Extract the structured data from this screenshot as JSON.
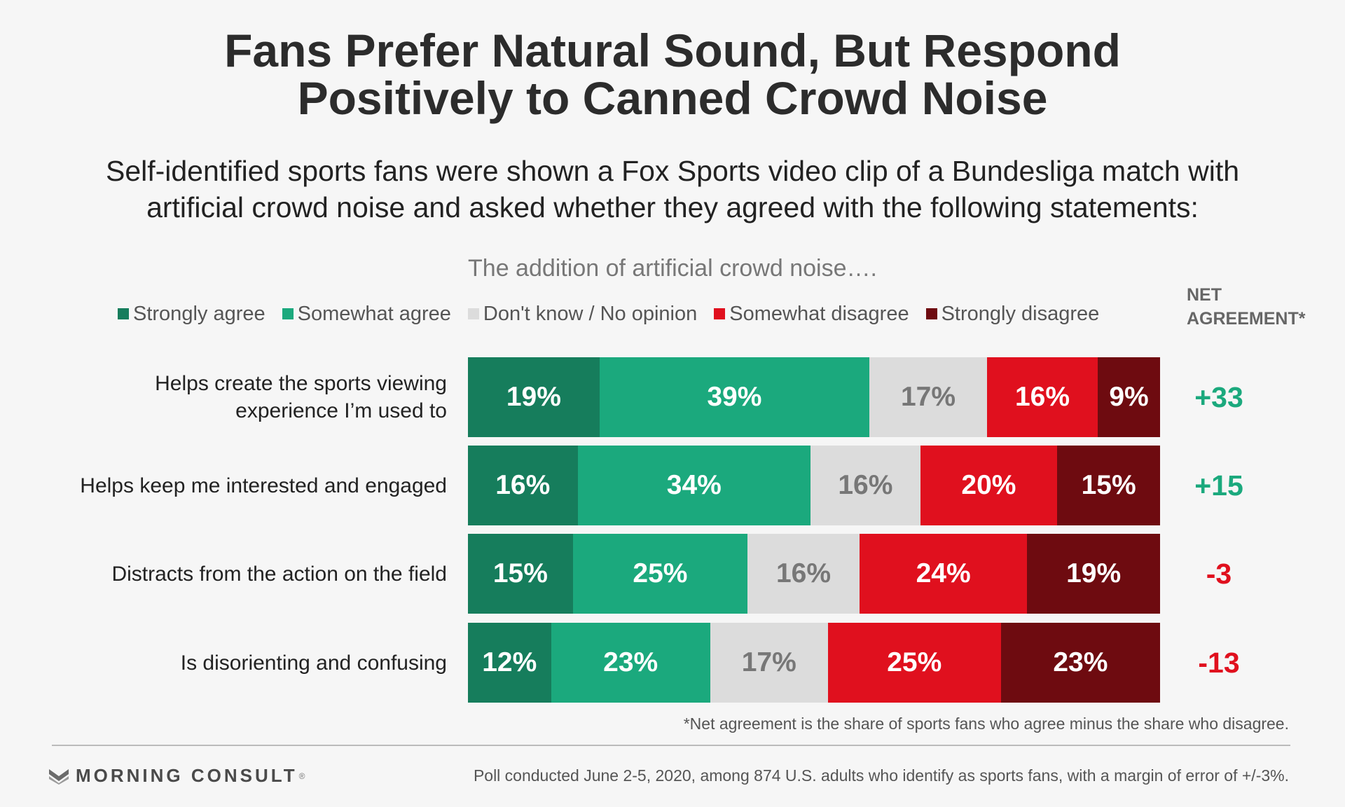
{
  "header": {
    "title_lines": [
      "Fans Prefer Natural Sound, But Respond",
      "Positively to Canned Crowd Noise"
    ],
    "subtitle_lines": [
      "Self-identified sports fans were shown a Fox Sports video clip of a Bundesliga match with",
      "artificial crowd noise and asked whether they agreed with the following statements:"
    ]
  },
  "colors": {
    "strongly_agree": "#167d5c",
    "somewhat_agree": "#1ba97d",
    "dont_know": "#dcdcdc",
    "somewhat_disagree": "#e0101e",
    "strongly_disagree": "#6e0b10",
    "positive_net": "#1ba97d",
    "negative_net": "#e0101e",
    "dont_know_label": "#777777"
  },
  "chart_data": {
    "type": "bar",
    "orientation": "horizontal",
    "stacked": true,
    "title": "The addition of artificial crowd noise….",
    "net_header": [
      "NET",
      "AGREEMENT*"
    ],
    "categories": [
      [
        "Helps create the sports viewing",
        "experience I’m used to"
      ],
      [
        "Helps keep me interested and engaged"
      ],
      [
        "Distracts from the action on the field"
      ],
      [
        "Is disorienting and confusing"
      ]
    ],
    "series": [
      {
        "name": "Strongly agree",
        "values": [
          19,
          16,
          15,
          12
        ]
      },
      {
        "name": "Somewhat agree",
        "values": [
          39,
          34,
          25,
          23
        ]
      },
      {
        "name": "Don't know / No opinion",
        "values": [
          17,
          16,
          16,
          17
        ]
      },
      {
        "name": "Somewhat disagree",
        "values": [
          16,
          20,
          24,
          25
        ]
      },
      {
        "name": "Strongly disagree",
        "values": [
          9,
          15,
          19,
          23
        ]
      }
    ],
    "net_agreement": [
      "+33",
      "+15",
      "-3",
      "-13"
    ],
    "value_suffix": "%",
    "legend_position": "top"
  },
  "footnote": "*Net agreement is the share of sports fans who agree minus the share who disagree.",
  "branding": {
    "logo_text": "MORNING CONSULT",
    "trademark": "®"
  },
  "source": "Poll conducted June 2-5, 2020, among 874 U.S. adults who identify as sports fans, with a margin of error of +/-3%."
}
